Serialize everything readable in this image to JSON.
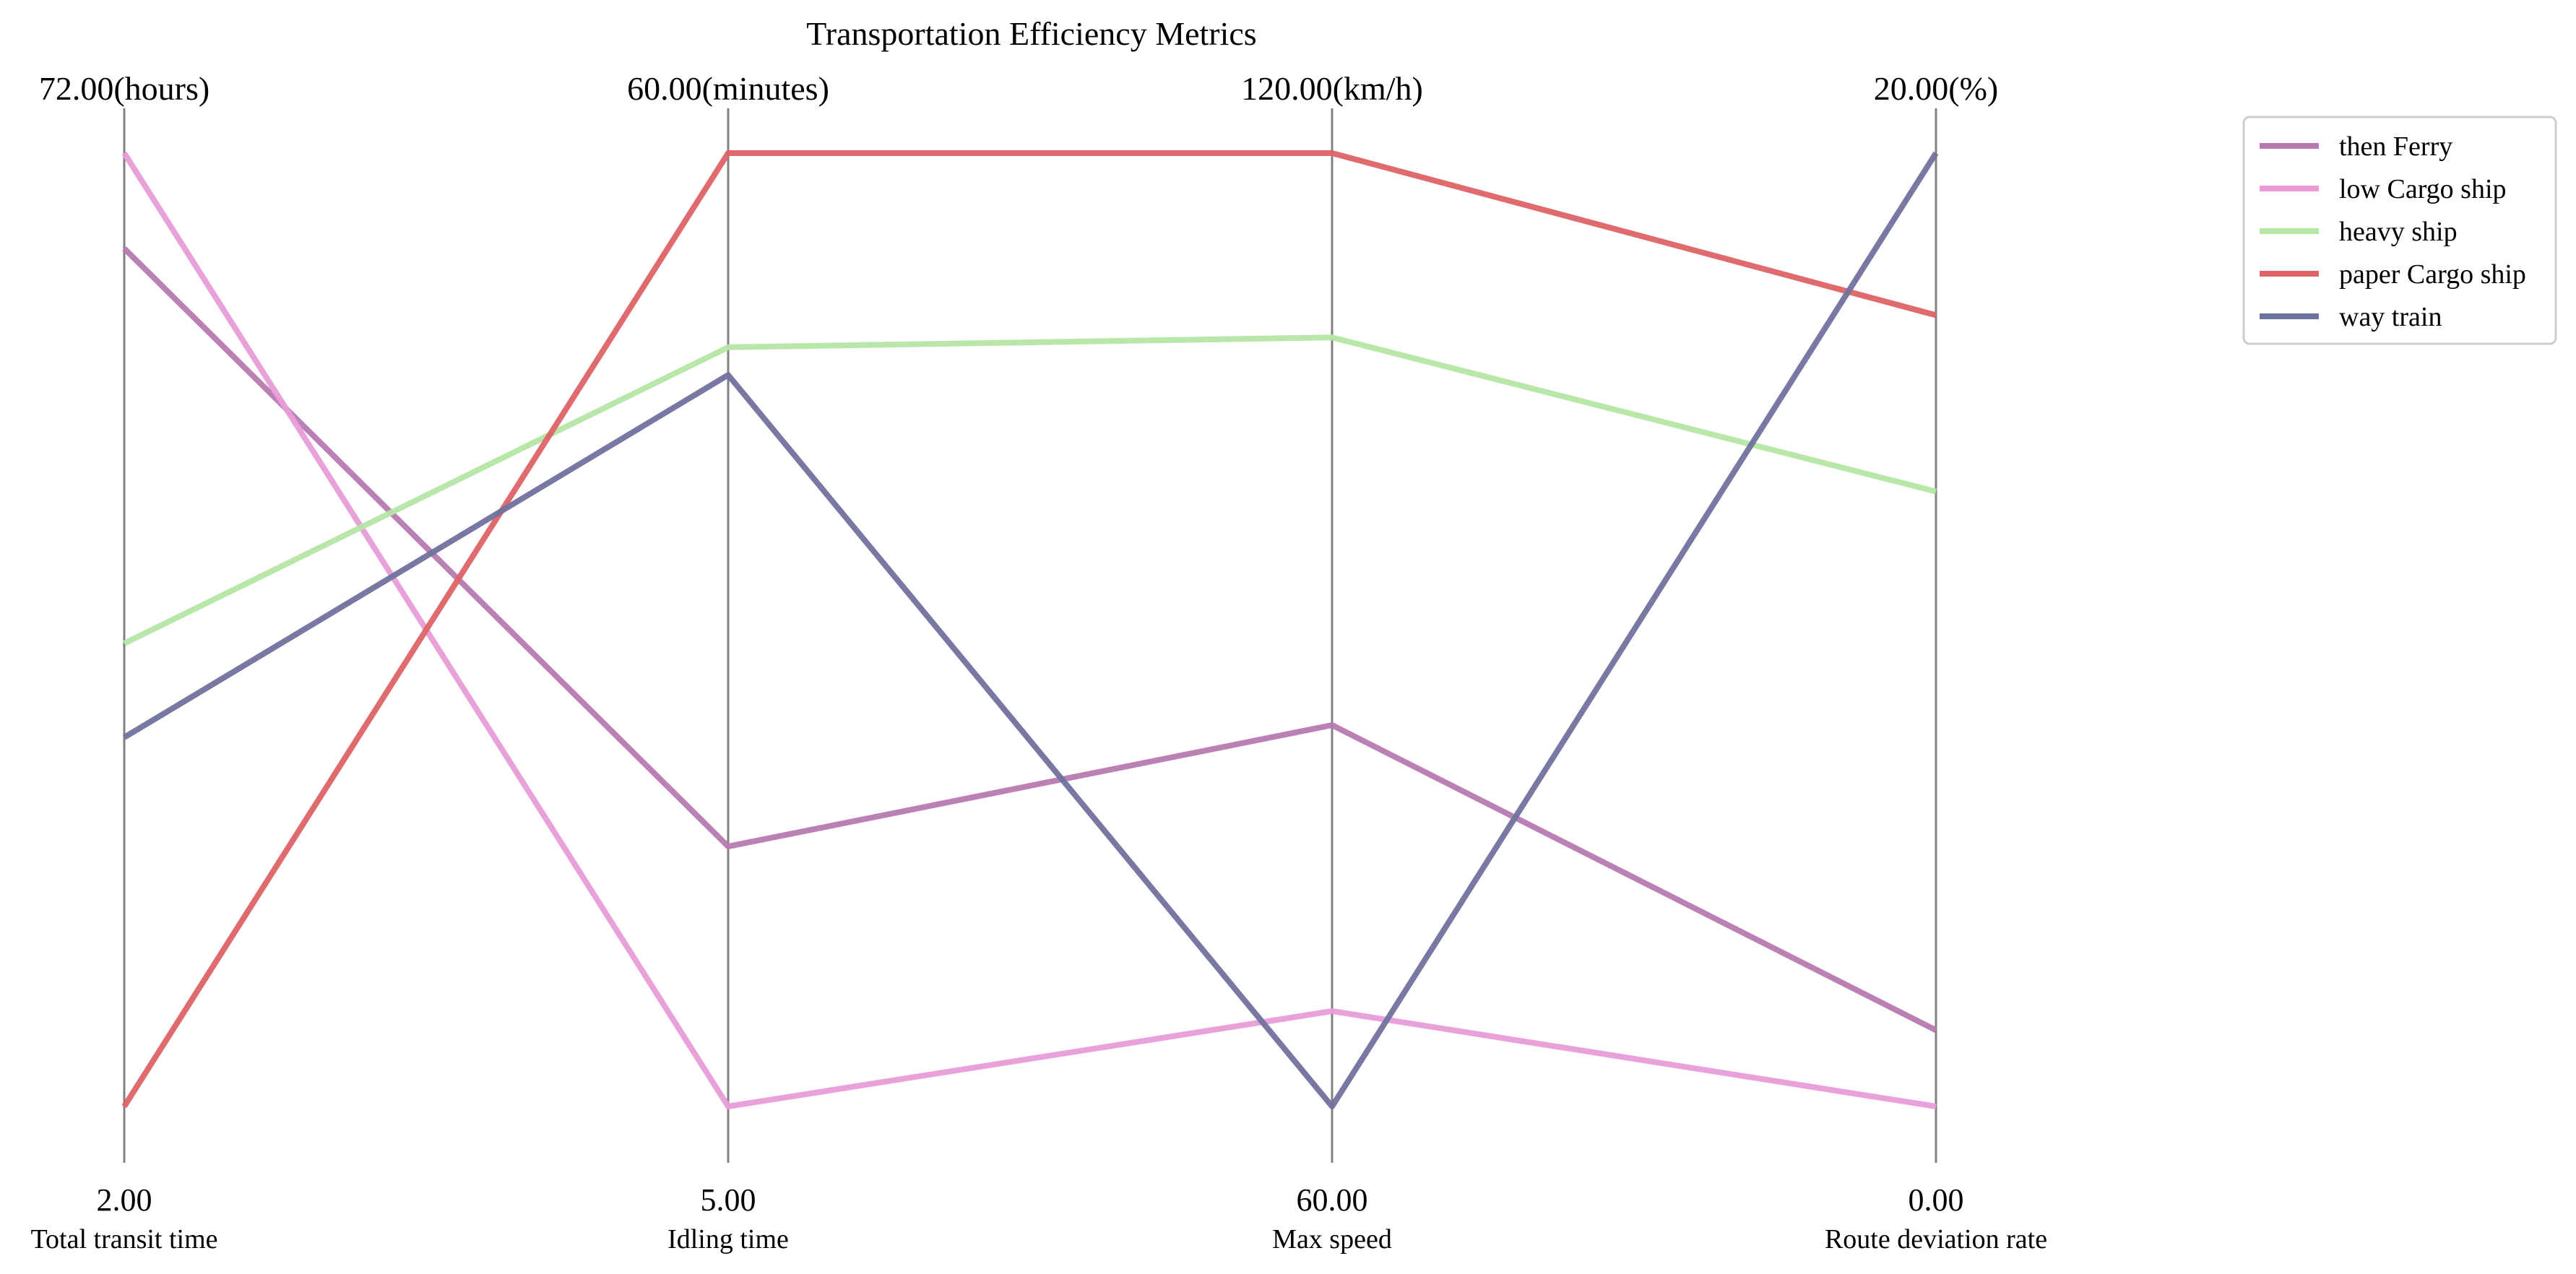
{
  "chart_data": {
    "type": "parallel-coordinates",
    "title": "Transportation Efficiency Metrics",
    "axes": [
      {
        "name": "Total transit time",
        "unit": "hours",
        "min": 2.0,
        "max": 72.0,
        "top_label": "72.00(hours)",
        "bottom_label": "2.00"
      },
      {
        "name": "Idling time",
        "unit": "minutes",
        "min": 5.0,
        "max": 60.0,
        "top_label": "60.00(minutes)",
        "bottom_label": "5.00"
      },
      {
        "name": "Max speed",
        "unit": "km/h",
        "min": 60.0,
        "max": 120.0,
        "top_label": "120.00(km/h)",
        "bottom_label": "60.00"
      },
      {
        "name": "Route deviation rate",
        "unit": "%",
        "min": 0.0,
        "max": 20.0,
        "top_label": "20.00(%)",
        "bottom_label": "0.00"
      }
    ],
    "series": [
      {
        "name": "then Ferry",
        "color": "#b87ab0",
        "values": [
          65.0,
          20.0,
          84.0,
          1.6
        ]
      },
      {
        "name": "low Cargo ship",
        "color": "#e89cd8",
        "values": [
          72.0,
          5.0,
          66.0,
          0.0
        ]
      },
      {
        "name": "heavy ship",
        "color": "#b5e6a5",
        "values": [
          36.0,
          48.8,
          108.4,
          12.9
        ]
      },
      {
        "name": "paper Cargo ship",
        "color": "#dd6367",
        "values": [
          2.0,
          60.0,
          120.0,
          16.6
        ]
      },
      {
        "name": "way train",
        "color": "#70729e",
        "values": [
          29.1,
          47.2,
          60.0,
          20.0
        ]
      }
    ],
    "legend_position": "top-right",
    "grid": false
  }
}
